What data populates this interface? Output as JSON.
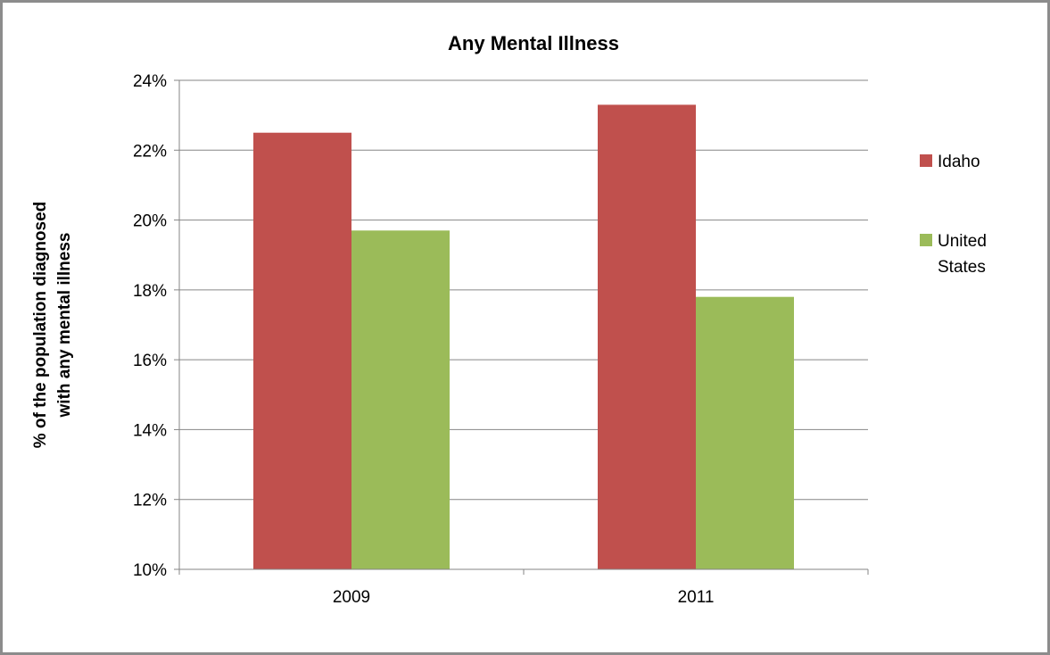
{
  "chart_data": {
    "type": "bar",
    "title": "Any Mental Illness",
    "ylabel_lines": [
      "% of the population diagnosed",
      "with any mental illness"
    ],
    "xlabel": "",
    "categories": [
      "2009",
      "2011"
    ],
    "series": [
      {
        "name": "Idaho",
        "values": [
          22.5,
          23.3
        ],
        "color": "#c0504d"
      },
      {
        "name": "United States",
        "name_lines": [
          "United",
          "States"
        ],
        "values": [
          19.7,
          17.8
        ],
        "color": "#9bbb59"
      }
    ],
    "ylim": [
      10,
      24
    ],
    "yticks": [
      10,
      12,
      14,
      16,
      18,
      20,
      22,
      24
    ],
    "ytick_labels": [
      "10%",
      "12%",
      "14%",
      "16%",
      "18%",
      "20%",
      "22%",
      "24%"
    ],
    "grid": true,
    "legend_position": "right"
  }
}
